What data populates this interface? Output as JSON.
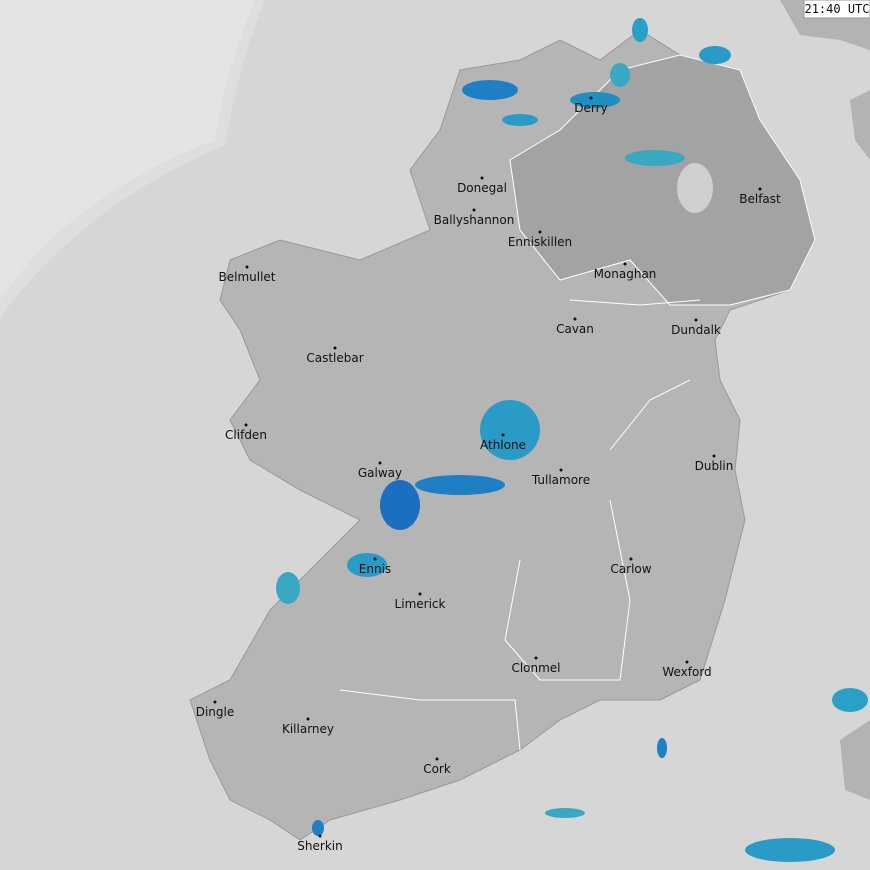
{
  "timestamp": "21:40 UTC",
  "places": [
    {
      "name": "Derry"
    },
    {
      "name": "Donegal"
    },
    {
      "name": "Ballyshannon"
    },
    {
      "name": "Enniskillen"
    },
    {
      "name": "Monaghan"
    },
    {
      "name": "Belfast"
    },
    {
      "name": "Belmullet"
    },
    {
      "name": "Cavan"
    },
    {
      "name": "Dundalk"
    },
    {
      "name": "Castlebar"
    },
    {
      "name": "Clifden"
    },
    {
      "name": "Athlone"
    },
    {
      "name": "Dublin"
    },
    {
      "name": "Galway"
    },
    {
      "name": "Tullamore"
    },
    {
      "name": "Ennis"
    },
    {
      "name": "Carlow"
    },
    {
      "name": "Limerick"
    },
    {
      "name": "Clonmel"
    },
    {
      "name": "Wexford"
    },
    {
      "name": "Dingle"
    },
    {
      "name": "Killarney"
    },
    {
      "name": "Cork"
    },
    {
      "name": "Sherkin"
    }
  ]
}
